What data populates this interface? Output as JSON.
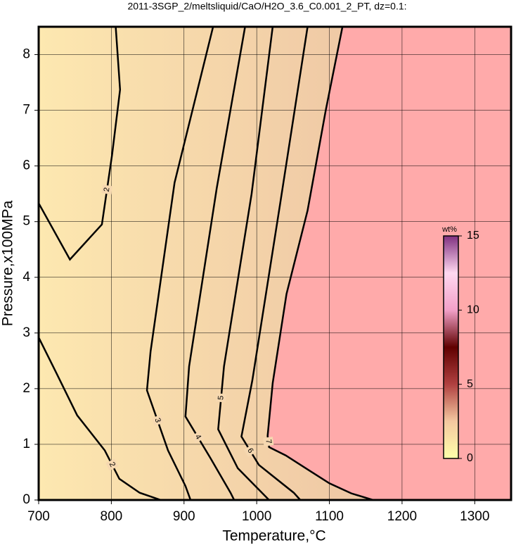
{
  "chart_data": {
    "type": "contour",
    "title": "2011-3SGP_2/meltsliquid/CaO/H2O_3.6_C0.001_2_PT, dz=0.1:",
    "x_label": "Temperature,°C",
    "y_label": "Pressure,x100MPa",
    "xlim": [
      700,
      1350
    ],
    "ylim": [
      0,
      8.5
    ],
    "xticks": [
      700,
      800,
      900,
      1000,
      1100,
      1200,
      1300
    ],
    "yticks": [
      0,
      1,
      2,
      3,
      4,
      5,
      6,
      7,
      8
    ],
    "grid": true,
    "melt_color": "#ffaaaa",
    "solid_colors": [
      "#fde8b0",
      "#e8b8a0"
    ],
    "contours": [
      {
        "level": 2,
        "x": [
          700,
          743,
          787,
          801,
          812,
          806,
          null,
          700,
          724,
          753,
          791,
          811,
          839,
          868
        ],
        "y": [
          5.33,
          4.32,
          4.95,
          6.2,
          7.37,
          8.5,
          null,
          2.92,
          2.29,
          1.52,
          0.89,
          0.38,
          0.13,
          0
        ]
      },
      {
        "level": 3,
        "x": [
          940,
          887,
          854,
          849,
          878,
          902,
          909
        ],
        "y": [
          8.5,
          5.7,
          2.67,
          1.97,
          0.89,
          0.25,
          0
        ]
      },
      {
        "level": 4,
        "x": [
          984,
          945,
          907,
          902,
          936,
          964,
          969
        ],
        "y": [
          8.5,
          5.6,
          2.4,
          1.5,
          0.76,
          0.13,
          0
        ]
      },
      {
        "level": 5,
        "x": [
          1022,
          993,
          955,
          947,
          974,
          1017
        ],
        "y": [
          8.5,
          5.5,
          2.4,
          1.27,
          0.57,
          0
        ]
      },
      {
        "level": 6,
        "x": [
          1070,
          1032,
          994,
          979,
          1003,
          1051,
          1060
        ],
        "y": [
          8.5,
          5.3,
          2.15,
          1.14,
          0.63,
          0.13,
          0
        ]
      },
      {
        "level": 7,
        "x": [
          1118,
          1095,
          1070,
          1041,
          1022,
          1015,
          1017,
          1040,
          1070,
          1100,
          1130,
          1160
        ],
        "y": [
          8.5,
          7,
          5.2,
          3.7,
          2.1,
          1.15,
          0.95,
          0.8,
          0.55,
          0.3,
          0.12,
          0
        ]
      }
    ],
    "colorbar": {
      "title": "wt%",
      "lim": [
        0,
        15
      ],
      "ticks": [
        0,
        5,
        10,
        15
      ],
      "colors": [
        "#ffffaa",
        "#f4c8a0",
        "#b04040",
        "#600000",
        "#f2a0c8",
        "#ffd8f0",
        "#803080"
      ]
    }
  }
}
